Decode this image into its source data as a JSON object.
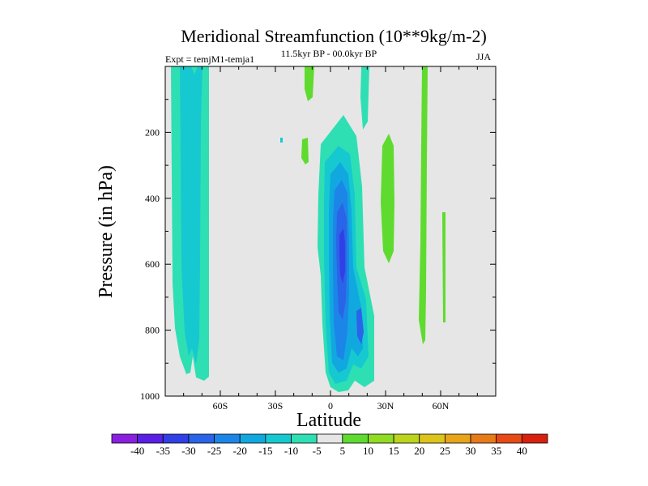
{
  "chart_data": {
    "type": "heatmap",
    "title": "Meridional Streamfunction (10**9kg/m-2)",
    "left_string": "Expt = temjM1-temja1",
    "center_string": "11.5kyr BP - 00.0kyr BP",
    "right_string": "JJA",
    "xlabel": "Latitude",
    "ylabel": "Pressure (in hPa)",
    "xlim": [
      -90,
      90
    ],
    "ylim": [
      0,
      1000
    ],
    "x_ticks": [
      {
        "value": -60,
        "label": "60S"
      },
      {
        "value": -30,
        "label": "30S"
      },
      {
        "value": 0,
        "label": "0"
      },
      {
        "value": 30,
        "label": "30N"
      },
      {
        "value": 60,
        "label": "60N"
      }
    ],
    "y_ticks": [
      {
        "value": 200,
        "label": "200"
      },
      {
        "value": 400,
        "label": "400"
      },
      {
        "value": 600,
        "label": "600"
      },
      {
        "value": 800,
        "label": "800"
      },
      {
        "value": 1000,
        "label": "1000"
      }
    ],
    "contour_levels": [
      -40,
      -35,
      -30,
      -25,
      -20,
      -15,
      -10,
      -5,
      5,
      10,
      15,
      20,
      25,
      30,
      35,
      40
    ],
    "colorbar_colors": [
      "#8a1fe0",
      "#5a1ee6",
      "#3040e6",
      "#2a64e8",
      "#1c86e8",
      "#11a8e0",
      "#16c9d0",
      "#2fdfb4",
      "#e6e6e6",
      "#5fdb2f",
      "#8fdc22",
      "#bcd41c",
      "#dcc41a",
      "#e8a41a",
      "#e87a18",
      "#e84a16",
      "#d8200e"
    ],
    "background_color": "#e6e6e6",
    "features": [
      {
        "name": "southern-polar-cell",
        "level": -10,
        "lat_range": [
          -88,
          -70
        ],
        "p_range": [
          0,
          970
        ]
      },
      {
        "name": "southern-polar-core",
        "level": -15,
        "lat_range": [
          -82,
          -75
        ],
        "p_range": [
          0,
          850
        ]
      },
      {
        "name": "hadley-cell-tropics",
        "level": -15,
        "lat_range": [
          -4,
          18
        ],
        "p_range": [
          210,
          990
        ]
      },
      {
        "name": "hadley-cell-core",
        "level": -35,
        "lat_range": [
          3,
          10
        ],
        "p_range": [
          380,
          610
        ]
      },
      {
        "name": "subtropical-positive-cell",
        "level": 5,
        "lat_range": [
          28,
          36
        ],
        "p_range": [
          180,
          560
        ]
      },
      {
        "name": "midlatitude-positive-cell",
        "level": 5,
        "lat_range": [
          51,
          55
        ],
        "p_range": [
          0,
          880
        ]
      }
    ]
  }
}
